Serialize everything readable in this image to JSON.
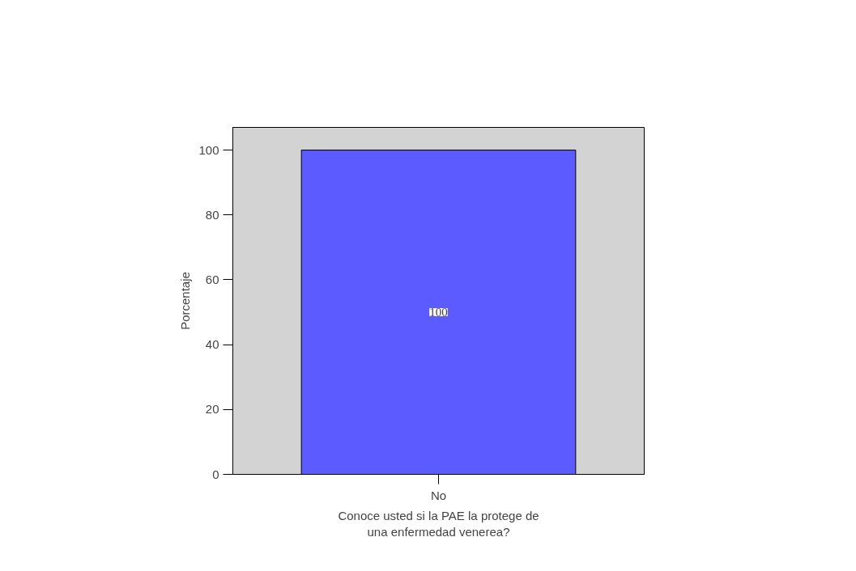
{
  "chart_data": {
    "type": "bar",
    "categories": [
      "No"
    ],
    "values": [
      100
    ],
    "color": "#5b5bff",
    "xlabel": "Conoce usted si la PAE la protege de\nuna enfermedad venerea?",
    "ylabel": "Porcentaje",
    "ylim": [
      0,
      107
    ],
    "yticks": [
      0,
      20,
      40,
      60,
      80,
      100
    ],
    "data_labels": true,
    "grid": false
  }
}
